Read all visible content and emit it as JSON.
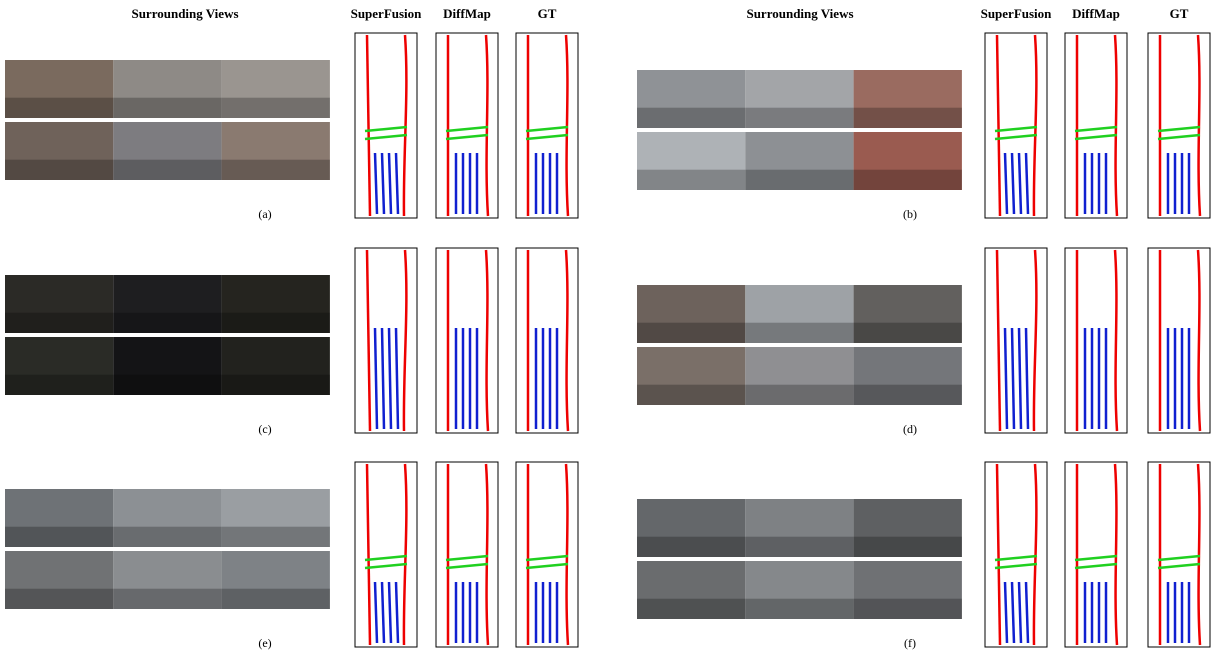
{
  "header": {
    "columns": [
      "Surrounding Views",
      "SuperFusion",
      "DiffMap",
      "GT"
    ]
  },
  "panels": [
    {
      "label": "(a)"
    },
    {
      "label": "(b)"
    },
    {
      "label": "(c)"
    },
    {
      "label": "(d)"
    },
    {
      "label": "(e)"
    },
    {
      "label": "(f)"
    }
  ]
}
